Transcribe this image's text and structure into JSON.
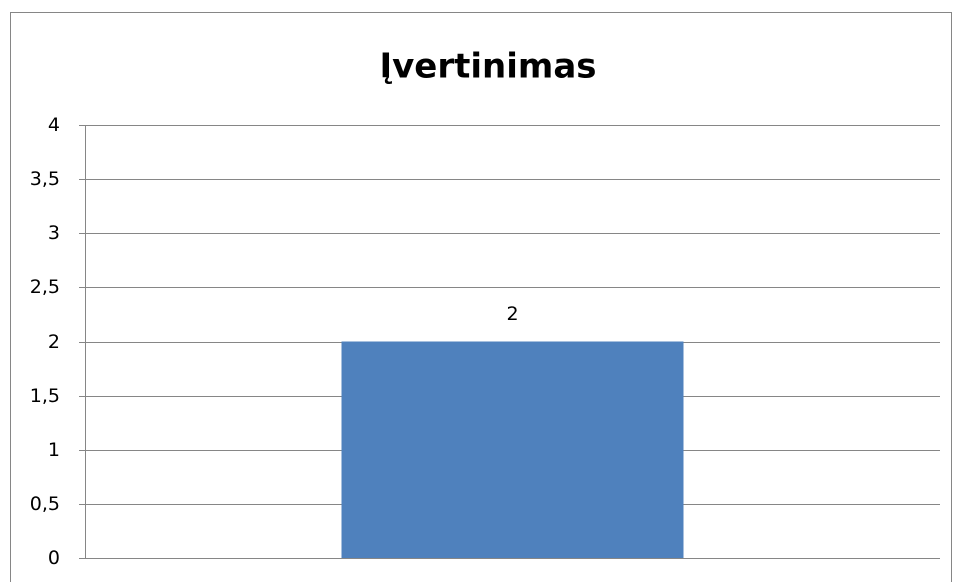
{
  "chart_data": {
    "type": "bar",
    "title": "Įvertinimas",
    "categories": [
      null
    ],
    "values": [
      2
    ],
    "color": "#4f81bd",
    "ylim": [
      0,
      4
    ],
    "yticks": [
      0,
      {
        "value": 0.5,
        "label": "0,5"
      },
      1,
      {
        "value": 1.5,
        "label": "1,5"
      },
      2,
      {
        "value": 2.5,
        "label": "2,5"
      },
      3,
      {
        "value": 3.5,
        "label": "3,5"
      },
      4
    ],
    "grid": true
  }
}
